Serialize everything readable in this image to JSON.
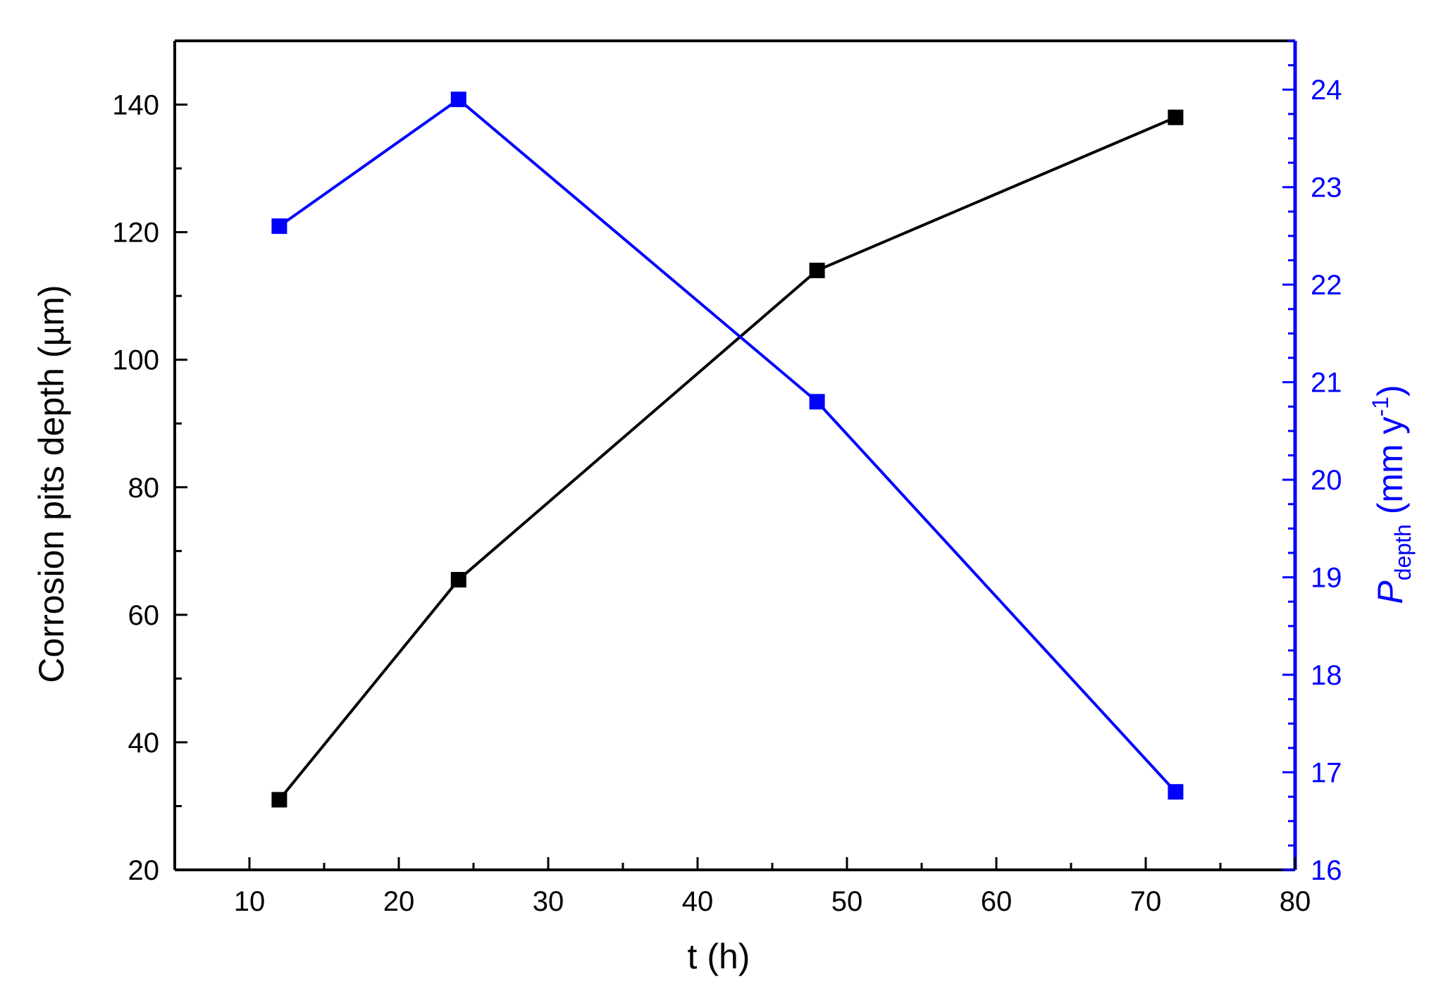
{
  "chart_data": {
    "type": "line",
    "xlabel": "t (h)",
    "ylabel_left": "Corrosion pits depth (µm)",
    "ylabel_right": {
      "main": "P",
      "subscript": "depth",
      "unit_prefix": " (mm y",
      "unit_superscript": "-1",
      "unit_suffix": ")"
    },
    "xlim": [
      5,
      80
    ],
    "xticks": [
      10,
      20,
      30,
      40,
      50,
      60,
      70,
      80
    ],
    "ylim_left": [
      20,
      150
    ],
    "yticks_left": [
      20,
      40,
      60,
      80,
      100,
      120,
      140
    ],
    "ylim_right": [
      16,
      24.5
    ],
    "yticks_right": [
      16,
      17,
      18,
      19,
      20,
      21,
      22,
      23,
      24
    ],
    "grid": false,
    "series": [
      {
        "axis": "left",
        "color": "#000000",
        "marker": "square",
        "x": [
          12,
          24,
          48,
          72
        ],
        "y": [
          31,
          65.5,
          114,
          138
        ]
      },
      {
        "axis": "right",
        "color": "#0000ff",
        "marker": "square",
        "x": [
          12,
          24,
          48,
          72
        ],
        "y": [
          22.6,
          23.9,
          20.8,
          16.8
        ]
      }
    ]
  }
}
